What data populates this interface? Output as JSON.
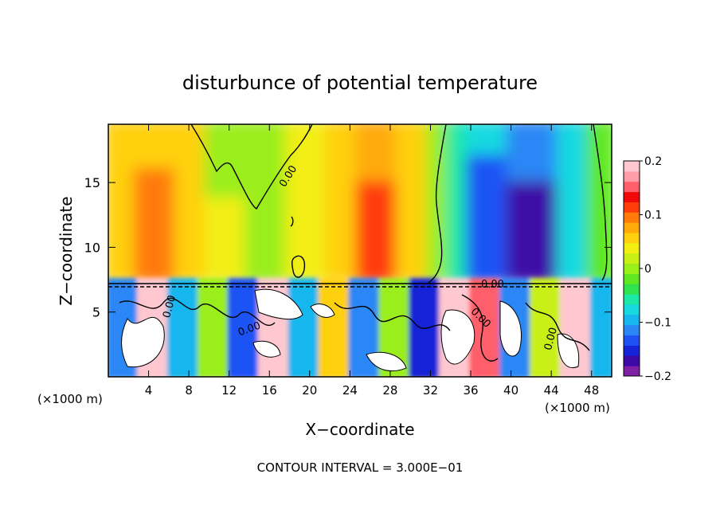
{
  "chart_data": {
    "type": "heatmap",
    "title": "disturbunce of potential temperature",
    "xlabel": "X−coordinate",
    "ylabel": "Z−coordinate",
    "x_unit_left": "(×1000 m)",
    "x_unit_right": "(×1000 m)",
    "xlim": [
      0,
      50
    ],
    "ylim": [
      0,
      19.5
    ],
    "x_ticks": [
      4,
      8,
      12,
      16,
      20,
      24,
      28,
      32,
      36,
      40,
      44,
      48
    ],
    "y_ticks": [
      5,
      10,
      15
    ],
    "colorbar": {
      "range": [
        -0.2,
        0.2
      ],
      "ticks": [
        {
          "value": 0.2,
          "label": "0.2"
        },
        {
          "value": 0.1,
          "label": "0.1"
        },
        {
          "value": 0,
          "label": "0"
        },
        {
          "value": -0.1,
          "label": "−0.1"
        },
        {
          "value": -0.2,
          "label": "−0.2"
        }
      ],
      "colors": [
        "#7e1fa6",
        "#3d09a7",
        "#1623d6",
        "#1f52f5",
        "#2b87f5",
        "#16b6ef",
        "#18d9e0",
        "#1ee8a8",
        "#2fe34f",
        "#5fe81f",
        "#9aee1a",
        "#c9f014",
        "#f2ee12",
        "#ffd00f",
        "#ffaa0a",
        "#ff7a08",
        "#ff3d0a",
        "#f00a0a",
        "#ff5f6b",
        "#ff9da8",
        "#ffc7cf"
      ]
    },
    "contour_interval": "CONTOUR INTERVAL = 3.000E−01",
    "contour_labels": [
      "0.00",
      "0.00",
      "0.00",
      "0.00",
      "0.00",
      "0.00"
    ],
    "field_cells": [
      {
        "x": [
          0,
          3
        ],
        "z": [
          7.5,
          19.5
        ],
        "value": 0.05
      },
      {
        "x": [
          3,
          7
        ],
        "z": [
          7.5,
          16.5
        ],
        "value": 0.1
      },
      {
        "x": [
          3,
          7
        ],
        "z": [
          16.5,
          19.5
        ],
        "value": 0.06
      },
      {
        "x": [
          7,
          10
        ],
        "z": [
          7.5,
          19.5
        ],
        "value": 0.05
      },
      {
        "x": [
          10,
          14
        ],
        "z": [
          13.5,
          19.5
        ],
        "value": 0.0
      },
      {
        "x": [
          10,
          14
        ],
        "z": [
          7.5,
          13.5
        ],
        "value": 0.03
      },
      {
        "x": [
          14,
          18
        ],
        "z": [
          7.5,
          19.5
        ],
        "value": 0.0
      },
      {
        "x": [
          18,
          22
        ],
        "z": [
          7.5,
          19.5
        ],
        "value": 0.03
      },
      {
        "x": [
          22,
          25
        ],
        "z": [
          7.5,
          19.5
        ],
        "value": 0.06
      },
      {
        "x": [
          25,
          29
        ],
        "z": [
          7.5,
          15.5
        ],
        "value": 0.12
      },
      {
        "x": [
          25,
          29
        ],
        "z": [
          15.5,
          19.5
        ],
        "value": 0.08
      },
      {
        "x": [
          29,
          32
        ],
        "z": [
          7.5,
          19.5
        ],
        "value": 0.05
      },
      {
        "x": [
          32,
          34
        ],
        "z": [
          7.5,
          19.5
        ],
        "value": 0.0
      },
      {
        "x": [
          34,
          36
        ],
        "z": [
          7.5,
          19.5
        ],
        "value": -0.05
      },
      {
        "x": [
          36,
          40
        ],
        "z": [
          7.5,
          17.5
        ],
        "value": -0.13
      },
      {
        "x": [
          36,
          40
        ],
        "z": [
          17.5,
          19.5
        ],
        "value": -0.08
      },
      {
        "x": [
          40,
          45
        ],
        "z": [
          7.5,
          15.5
        ],
        "value": -0.17
      },
      {
        "x": [
          40,
          45
        ],
        "z": [
          15.5,
          19.5
        ],
        "value": -0.11
      },
      {
        "x": [
          45,
          48
        ],
        "z": [
          7.5,
          19.5
        ],
        "value": -0.08
      },
      {
        "x": [
          48,
          50
        ],
        "z": [
          7.5,
          19.5
        ],
        "value": -0.02
      },
      {
        "x": [
          0,
          3
        ],
        "z": [
          0,
          7.5
        ],
        "value": -0.12
      },
      {
        "x": [
          3,
          6
        ],
        "z": [
          0,
          7.5
        ],
        "value": 0.2
      },
      {
        "x": [
          6,
          9
        ],
        "z": [
          0,
          7.5
        ],
        "value": -0.1
      },
      {
        "x": [
          9,
          12
        ],
        "z": [
          0,
          7.5
        ],
        "value": 0.0
      },
      {
        "x": [
          12,
          15
        ],
        "z": [
          0,
          7.5
        ],
        "value": -0.14
      },
      {
        "x": [
          15,
          18
        ],
        "z": [
          0,
          7.5
        ],
        "value": 0.2
      },
      {
        "x": [
          18,
          21
        ],
        "z": [
          0,
          7.5
        ],
        "value": -0.1
      },
      {
        "x": [
          21,
          24
        ],
        "z": [
          0,
          7.5
        ],
        "value": 0.05
      },
      {
        "x": [
          24,
          27
        ],
        "z": [
          0,
          7.5
        ],
        "value": -0.12
      },
      {
        "x": [
          27,
          30
        ],
        "z": [
          0,
          7.5
        ],
        "value": 0.0
      },
      {
        "x": [
          30,
          33
        ],
        "z": [
          0,
          7.5
        ],
        "value": -0.15
      },
      {
        "x": [
          33,
          36
        ],
        "z": [
          0,
          7.5
        ],
        "value": 0.2
      },
      {
        "x": [
          36,
          39
        ],
        "z": [
          0,
          7.5
        ],
        "value": 0.15
      },
      {
        "x": [
          39,
          42
        ],
        "z": [
          0,
          7.5
        ],
        "value": -0.12
      },
      {
        "x": [
          42,
          45
        ],
        "z": [
          0,
          7.5
        ],
        "value": 0.02
      },
      {
        "x": [
          45,
          48
        ],
        "z": [
          0,
          7.5
        ],
        "value": 0.2
      },
      {
        "x": [
          48,
          50
        ],
        "z": [
          0,
          7.5
        ],
        "value": -0.1
      }
    ]
  }
}
